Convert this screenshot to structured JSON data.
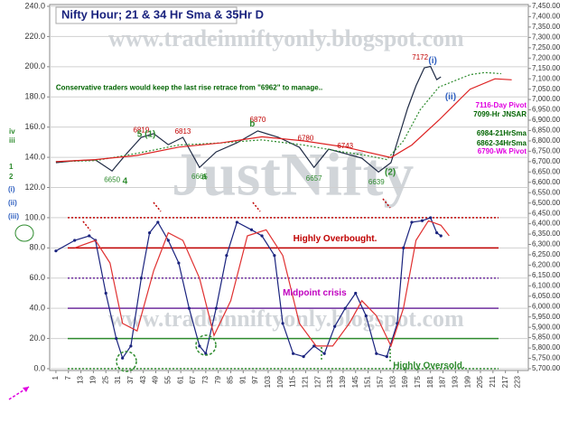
{
  "chart_data": {
    "type": "line",
    "title": "Nifty Hour; 21 & 34 Hr Sma & 35Hr D",
    "watermarks": [
      "www.tradeinniftyonly.blogspot.com",
      "JustNifty",
      "www.tradeinniftyonly.blogspot.com"
    ],
    "xlim": [
      -2,
      228
    ],
    "xticks": [
      1,
      7,
      13,
      19,
      25,
      31,
      37,
      43,
      49,
      55,
      61,
      67,
      73,
      79,
      85,
      91,
      97,
      103,
      109,
      115,
      121,
      127,
      133,
      139,
      145,
      151,
      157,
      163,
      169,
      175,
      181,
      187,
      193,
      199,
      205,
      211,
      217,
      223
    ],
    "ylim": [
      0,
      240
    ],
    "yticks": [
      {
        "value": 0,
        "label": "0.0"
      },
      {
        "value": 20,
        "label": "20.0"
      },
      {
        "value": 40,
        "label": "40.0"
      },
      {
        "value": 60,
        "label": "60.0"
      },
      {
        "value": 80,
        "label": "80.0"
      },
      {
        "value": 100,
        "label": "100.0"
      },
      {
        "value": 120,
        "label": "120.0"
      },
      {
        "value": 140,
        "label": "140.0"
      },
      {
        "value": 160,
        "label": "160.0"
      },
      {
        "value": 180,
        "label": "180.0"
      },
      {
        "value": 200,
        "label": "200.0"
      },
      {
        "value": 220,
        "label": "220.0"
      },
      {
        "value": 240,
        "label": "240.0"
      }
    ],
    "y2lim": [
      5700,
      7450
    ],
    "y2ticks": [
      {
        "value": 5700,
        "label": "5,700.00"
      },
      {
        "value": 5750,
        "label": "5,750.00"
      },
      {
        "value": 5800,
        "label": "5,800.00"
      },
      {
        "value": 5850,
        "label": "5,850.00"
      },
      {
        "value": 5900,
        "label": "5,900.00"
      },
      {
        "value": 5950,
        "label": "5,950.00"
      },
      {
        "value": 6000,
        "label": "6,000.00"
      },
      {
        "value": 6050,
        "label": "6,050.00"
      },
      {
        "value": 6100,
        "label": "6,100.00"
      },
      {
        "value": 6150,
        "label": "6,150.00"
      },
      {
        "value": 6200,
        "label": "6,200.00"
      },
      {
        "value": 6250,
        "label": "6,250.00"
      },
      {
        "value": 6300,
        "label": "6,300.00"
      },
      {
        "value": 6350,
        "label": "6,350.00"
      },
      {
        "value": 6400,
        "label": "6,400.00"
      },
      {
        "value": 6450,
        "label": "6,450.00"
      },
      {
        "value": 6500,
        "label": "6,500.00"
      },
      {
        "value": 6550,
        "label": "6,550.00"
      },
      {
        "value": 6600,
        "label": "6,600.00"
      },
      {
        "value": 6650,
        "label": "6,650.00"
      },
      {
        "value": 6700,
        "label": "6,700.00"
      },
      {
        "value": 6750,
        "label": "6,750.00"
      },
      {
        "value": 6800,
        "label": "6,800.00"
      },
      {
        "value": 6850,
        "label": "6,850.00"
      },
      {
        "value": 6900,
        "label": "6,900.00"
      },
      {
        "value": 6950,
        "label": "6,950.00"
      },
      {
        "value": 7000,
        "label": "7,000.00"
      },
      {
        "value": 7050,
        "label": "7,050.00"
      },
      {
        "value": 7100,
        "label": "7,100.00"
      },
      {
        "value": 7150,
        "label": "7,150.00"
      },
      {
        "value": 7200,
        "label": "7,200.00"
      },
      {
        "value": 7250,
        "label": "7,250.00"
      },
      {
        "value": 7300,
        "label": "7,300.00"
      },
      {
        "value": 7350,
        "label": "7,350.00"
      },
      {
        "value": 7400,
        "label": "7,400.00"
      },
      {
        "value": 7450,
        "label": "7,450.00"
      }
    ],
    "grid": true,
    "series": [
      {
        "axis": "y2",
        "color": "#1f2a44",
        "dash": "none",
        "x": [
          1,
          10,
          20,
          28,
          35,
          42,
          48,
          55,
          62,
          70,
          78,
          88,
          98,
          108,
          118,
          125,
          132,
          140,
          148,
          156,
          162,
          166,
          170,
          174,
          178,
          181,
          184,
          186
        ],
        "values": [
          6695,
          6704,
          6708,
          6655,
          6739,
          6817,
          6835,
          6782,
          6817,
          6672,
          6747,
          6791,
          6848,
          6817,
          6769,
          6672,
          6760,
          6739,
          6717,
          6650,
          6695,
          6826,
          6957,
          7066,
          7153,
          7160,
          7096,
          7109
        ]
      },
      {
        "axis": "y2",
        "color": "#2e8b2e",
        "dash": "2,2",
        "x": [
          1,
          20,
          40,
          60,
          80,
          100,
          120,
          140,
          150,
          160,
          168,
          176,
          185,
          200,
          207,
          215
        ],
        "values": [
          6700,
          6705,
          6740,
          6780,
          6790,
          6805,
          6780,
          6745,
          6730,
          6710,
          6800,
          6950,
          7060,
          7120,
          7130,
          7125
        ]
      },
      {
        "axis": "y2",
        "color": "#d22",
        "dash": "none",
        "x": [
          1,
          20,
          40,
          60,
          80,
          100,
          120,
          140,
          162,
          172,
          185,
          200,
          212,
          220
        ],
        "values": [
          6700,
          6710,
          6730,
          6770,
          6790,
          6820,
          6800,
          6770,
          6720,
          6780,
          6900,
          7050,
          7100,
          7095
        ]
      },
      {
        "axis": "y",
        "color": "#1a237e",
        "dash": "none",
        "marker": true,
        "x": [
          1,
          10,
          17,
          20,
          25,
          30,
          33,
          37,
          42,
          46,
          50,
          55,
          60,
          65,
          70,
          73,
          78,
          83,
          88,
          95,
          100,
          106,
          110,
          115,
          120,
          125,
          130,
          135,
          140,
          145,
          150,
          155,
          160,
          165,
          168,
          172,
          177,
          181,
          184,
          186
        ],
        "values": [
          78,
          85,
          88,
          85,
          50,
          20,
          7,
          15,
          60,
          90,
          97,
          85,
          70,
          40,
          15,
          10,
          40,
          75,
          97,
          92,
          88,
          75,
          30,
          10,
          8,
          15,
          10,
          28,
          40,
          50,
          35,
          10,
          8,
          30,
          80,
          97,
          98,
          100,
          90,
          88
        ]
      },
      {
        "axis": "y",
        "color": "#e03030",
        "dash": "none",
        "x": [
          10,
          20,
          27,
          33,
          40,
          48,
          55,
          62,
          70,
          77,
          85,
          93,
          102,
          110,
          118,
          126,
          134,
          142,
          148,
          155,
          162,
          168,
          174,
          180,
          186,
          190
        ],
        "values": [
          80,
          85,
          70,
          30,
          25,
          65,
          90,
          85,
          60,
          22,
          45,
          88,
          92,
          75,
          30,
          15,
          15,
          30,
          45,
          35,
          15,
          40,
          85,
          98,
          95,
          88
        ]
      }
    ],
    "hlines": [
      {
        "value": 100,
        "color": "#c00000",
        "dash": "2,2"
      },
      {
        "value": 80,
        "color": "#c00000",
        "dash": "none"
      },
      {
        "value": 60,
        "color": "#7030a0",
        "dash": "2,2"
      },
      {
        "value": 40,
        "color": "#7030a0",
        "dash": "none"
      },
      {
        "value": 20,
        "color": "#2e8b2e",
        "dash": "none"
      },
      {
        "value": 0,
        "color": "#2e8b2e",
        "dash": "2,2"
      }
    ],
    "point_labels": [
      {
        "x": 28,
        "y": 6650
      },
      {
        "x": 42,
        "y": 6819
      },
      {
        "x": 62,
        "y": 6813
      },
      {
        "x": 70,
        "y": 6665
      },
      {
        "x": 98,
        "y": 6870
      },
      {
        "x": 121,
        "y": 6780
      },
      {
        "x": 125,
        "y": 6657
      },
      {
        "x": 140,
        "y": 6743
      },
      {
        "x": 155,
        "y": 6639
      },
      {
        "x": 176,
        "y": 7172
      }
    ],
    "annotations": [
      {
        "text": "Conservative traders would keep the last rise retrace from \"6962\" to manage..",
        "x": 1,
        "y": 186,
        "color": "#006400"
      },
      {
        "text": "Highly Overbought.",
        "x": 115,
        "y": 86,
        "color": "#c00000"
      },
      {
        "text": "Midpoint crisis",
        "x": 110,
        "y": 50,
        "color": "#c000c0"
      },
      {
        "text": "Highly Oversold.",
        "x": 163,
        "y": 2,
        "color": "#2e8b2e"
      },
      {
        "text": "5 (1)",
        "x": 40,
        "y": 155,
        "color": "#2e8b2e"
      },
      {
        "text": "4",
        "x": 33,
        "y": 124,
        "color": "#2e8b2e"
      },
      {
        "text": "a",
        "x": 71,
        "y": 127,
        "color": "#2e8b2e"
      },
      {
        "text": "b",
        "x": 94,
        "y": 162,
        "color": "#2e8b2e"
      },
      {
        "text": "(2)",
        "x": 159,
        "y": 130,
        "color": "#2e8b2e"
      },
      {
        "text": "(i)",
        "x": 180,
        "y": 204,
        "color": "#3060c0"
      },
      {
        "text": "(ii)",
        "x": 188,
        "y": 180,
        "color": "#3060c0"
      }
    ],
    "left_labels": [
      {
        "text": "iv",
        "color": "#2e8b2e"
      },
      {
        "text": "iii",
        "color": "#2e8b2e"
      },
      {
        "text": "1",
        "color": "#2e8b2e"
      },
      {
        "text": "2",
        "color": "#2e8b2e"
      },
      {
        "text": "(i)",
        "color": "#3060c0"
      },
      {
        "text": "(ii)",
        "color": "#3060c0"
      },
      {
        "text": "(iii)",
        "color": "#3060c0"
      }
    ],
    "side_notes": [
      {
        "text": "7116-Day Pivot",
        "color": "#e000e0"
      },
      {
        "text": "7099-Hr JNSAR",
        "color": "#006400"
      },
      {
        "text": "6984-21HrSma",
        "color": "#006400"
      },
      {
        "text": "6862-34HrSma",
        "color": "#006400"
      },
      {
        "text": "6790-Wk Pivot",
        "color": "#e000e0"
      }
    ]
  }
}
